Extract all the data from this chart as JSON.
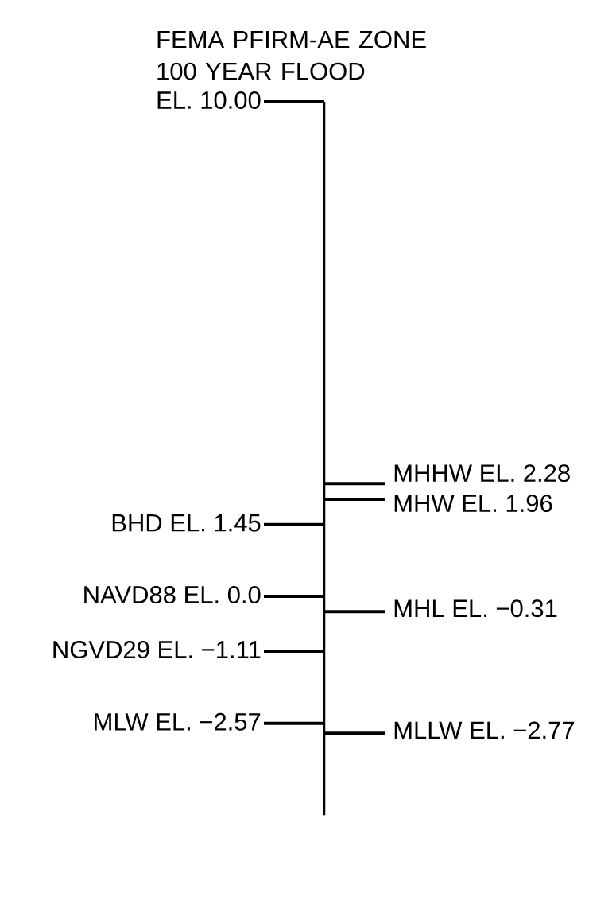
{
  "chart_data": {
    "type": "other",
    "categories": [
      "FEMA PFIRM-AE ZONE 100 YEAR FLOOD",
      "MHHW",
      "MHW",
      "BHD",
      "NAVD88",
      "MHL",
      "NGVD29",
      "MLW",
      "MLLW"
    ],
    "series": [
      {
        "values": [
          10.0,
          null,
          null,
          1.45,
          0.0,
          null,
          -1.11,
          -2.57,
          null
        ],
        "value_labels": [
          "EL. 10.00",
          null,
          null,
          "EL. 1.45",
          "EL. 0.0",
          null,
          "EL. −1.11",
          "EL. −2.57",
          null
        ]
      },
      {
        "values": [
          null,
          2.28,
          1.96,
          null,
          null,
          -0.31,
          null,
          null,
          -2.77
        ],
        "value_labels": [
          null,
          "EL. 2.28",
          "EL. 1.96",
          null,
          null,
          "EL. −0.31",
          null,
          null,
          "EL. −2.77"
        ]
      }
    ]
  }
}
